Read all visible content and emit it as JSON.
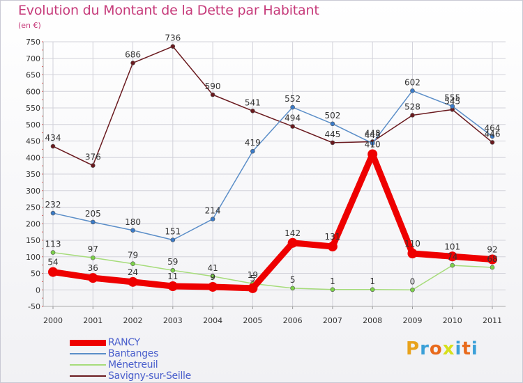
{
  "title": "Evolution du Montant de la Dette par Habitant",
  "unit_label": "(en €)",
  "logo": {
    "letters": [
      "P",
      "r",
      "o",
      "x",
      "i",
      "t",
      "i"
    ],
    "colors": [
      "#e8a21c",
      "#3aa0d8",
      "#e86a1c",
      "#d6e01c",
      "#3aa0d8",
      "#e86a1c",
      "#3aa0d8"
    ]
  },
  "chart_data": {
    "type": "line",
    "x": [
      "2000",
      "2001",
      "2002",
      "2003",
      "2004",
      "2005",
      "2006",
      "2007",
      "2008",
      "2009",
      "2010",
      "2011"
    ],
    "ylim": [
      -50,
      750
    ],
    "yticks": [
      -50,
      0,
      50,
      100,
      150,
      200,
      250,
      300,
      350,
      400,
      450,
      500,
      550,
      600,
      650,
      700,
      750
    ],
    "grid": true,
    "legend_position": "bottom-left",
    "series": [
      {
        "name": "Savigny-sur-Seille",
        "color": "#6a1a1f",
        "marker": "#6a1a1f",
        "values": [
          434,
          376,
          686,
          736,
          590,
          541,
          494,
          445,
          448,
          528,
          545,
          446
        ],
        "labels": [
          "434",
          "376",
          "686",
          "736",
          "590",
          "541",
          "494",
          "445",
          "448",
          "528",
          "545",
          "446"
        ]
      },
      {
        "name": "Bantanges",
        "color": "#5b8ec8",
        "marker": "#3b7bc8",
        "values": [
          232,
          205,
          180,
          151,
          214,
          419,
          552,
          502,
          443,
          602,
          555,
          464
        ],
        "labels": [
          "232",
          "205",
          "180",
          "151",
          "214",
          "419",
          "552",
          "502",
          "443",
          "602",
          "555",
          "464"
        ]
      },
      {
        "name": "Ménetreuil",
        "color": "#a6dc7a",
        "marker": "#7cd14a",
        "values": [
          113,
          97,
          79,
          59,
          41,
          19,
          5,
          1,
          1,
          0,
          74,
          68
        ],
        "labels": [
          "113",
          "97",
          "79",
          "59",
          "41",
          "19",
          "5",
          "1",
          "1",
          "0",
          "74",
          "68"
        ]
      },
      {
        "name": "RANCY",
        "color": "#ee0000",
        "marker": "#ee0000",
        "values": [
          54,
          36,
          24,
          11,
          9,
          5,
          142,
          131,
          410,
          110,
          101,
          92
        ],
        "labels": [
          "54",
          "36",
          "24",
          "11",
          "9",
          "5",
          "142",
          "131",
          "410",
          "110",
          "101",
          "92"
        ]
      }
    ],
    "legend_order": [
      "RANCY",
      "Bantanges",
      "Ménetreuil",
      "Savigny-sur-Seille"
    ]
  }
}
